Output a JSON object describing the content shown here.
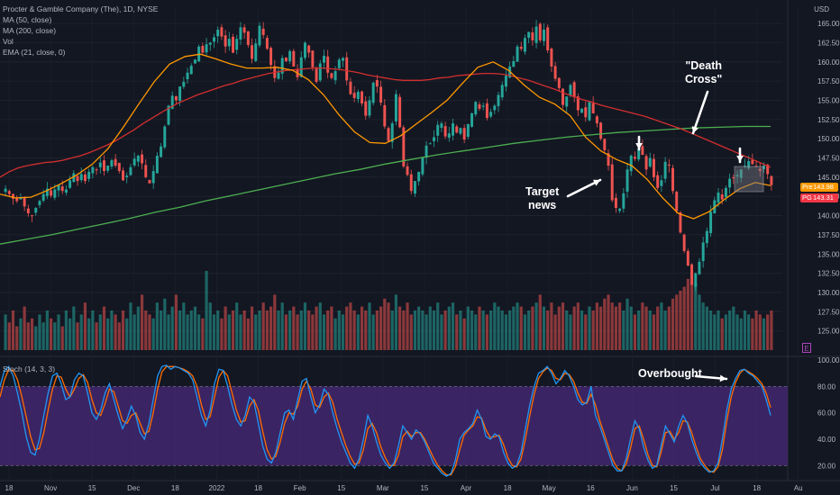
{
  "header": {
    "symbol_line": "Procter & Gamble Company (The), 1D, NYSE",
    "indicators": [
      "MA (50, close)",
      "MA (200, close)",
      "Vol",
      "EMA (21, close, 0)"
    ],
    "stoch_label": "Stoch (14, 3, 3)",
    "currency": "USD"
  },
  "price_tags": [
    {
      "key": "Pre",
      "value": "143.98",
      "color": "#ff9800"
    },
    {
      "key": "PG",
      "value": "143.31",
      "color": "#f23645"
    }
  ],
  "annotations": {
    "death_cross": "\"Death\nCross\"",
    "target_news": "Target\nnews",
    "overbought": "Overbought"
  },
  "colors": {
    "bg": "#131722",
    "up": "#26a69a",
    "down": "#ef5350",
    "ma50": "#d32f2f",
    "ma200": "#4caf50",
    "ema21": "#ff9800",
    "stoch_k": "#2196f3",
    "stoch_d": "#ff6d00",
    "stoch_band": "#4a2a7a"
  },
  "chart_data": [
    {
      "type": "candlestick",
      "title": "Procter & Gamble Company (The), 1D, NYSE",
      "ylabel": "USD",
      "ylim": [
        122.5,
        167.0
      ],
      "y_ticks": [
        125.0,
        127.5,
        130.0,
        132.5,
        135.0,
        137.5,
        140.0,
        142.5,
        145.0,
        147.5,
        150.0,
        152.5,
        155.0,
        157.5,
        160.0,
        162.5,
        165.0
      ],
      "x_tick_labels": [
        "18",
        "Nov",
        "15",
        "Dec",
        "18",
        "2022",
        "18",
        "Feb",
        "15",
        "Mar",
        "15",
        "Apr",
        "18",
        "May",
        "16",
        "Jun",
        "15",
        "Jul",
        "18",
        "Au"
      ],
      "close_series": [
        143.5,
        142.8,
        142.2,
        141.9,
        142.3,
        141.2,
        140.3,
        140.0,
        141.0,
        141.9,
        142.8,
        143.5,
        142.6,
        143.4,
        144.0,
        143.2,
        143.4,
        144.6,
        145.5,
        144.5,
        145.4,
        144.5,
        145.7,
        146.3,
        146.0,
        146.9,
        145.8,
        146.5,
        147.2,
        146.5,
        145.8,
        144.6,
        145.2,
        146.3,
        147.4,
        147.8,
        146.8,
        145.0,
        144.2,
        145.8,
        147.8,
        149.0,
        151.6,
        154.3,
        155.6,
        155.0,
        156.8,
        157.4,
        158.6,
        159.5,
        160.3,
        162.0,
        161.2,
        162.3,
        162.5,
        163.2,
        164.2,
        163.3,
        162.0,
        163.0,
        161.2,
        163.0,
        164.5,
        163.8,
        162.2,
        160.4,
        162.4,
        164.7,
        163.5,
        161.7,
        159.6,
        157.9,
        158.6,
        160.5,
        160.1,
        161.4,
        159.4,
        158.0,
        160.6,
        162.5,
        161.2,
        159.3,
        157.4,
        159.8,
        160.8,
        158.6,
        157.9,
        158.8,
        160.3,
        160.5,
        157.6,
        155.8,
        155.3,
        156.1,
        154.6,
        153.0,
        155.0,
        157.3,
        156.8,
        154.7,
        151.6,
        149.7,
        152.0,
        155.8,
        151.5,
        146.4,
        145.3,
        143.2,
        144.5,
        145.7,
        147.6,
        149.1,
        149.4,
        150.2,
        151.8,
        152.0,
        150.3,
        150.7,
        152.0,
        150.8,
        151.4,
        149.9,
        151.9,
        153.3,
        154.8,
        153.9,
        154.3,
        152.7,
        153.5,
        154.3,
        155.7,
        157.0,
        158.2,
        159.4,
        160.1,
        162.0,
        161.7,
        163.1,
        163.9,
        162.8,
        164.6,
        162.8,
        164.2,
        161.5,
        159.4,
        157.8,
        156.6,
        154.4,
        155.5,
        157.0,
        155.4,
        153.7,
        153.9,
        152.8,
        154.8,
        153.3,
        152.0,
        150.0,
        148.5,
        146.5,
        142.0,
        141.0,
        140.9,
        142.9,
        146.0,
        147.8,
        147.4,
        148.7,
        147.9,
        146.0,
        147.5,
        145.0,
        143.6,
        144.6,
        147.0,
        146.5,
        143.2,
        140.6,
        137.8,
        135.4,
        133.5,
        131.0,
        132.5,
        134.0,
        136.5,
        138.0,
        140.5,
        142.0,
        143.0,
        142.1,
        143.6,
        144.8,
        144.9,
        145.3,
        146.0,
        146.5,
        147.1,
        146.7,
        146.4,
        145.8,
        146.5,
        145.4,
        143.98
      ],
      "ma50_series": [
        145.0,
        145.7,
        146.2,
        146.5,
        146.7,
        146.9,
        147.0,
        147.2,
        147.5,
        147.8,
        148.2,
        148.7,
        149.2,
        149.8,
        150.5,
        151.2,
        152.0,
        152.7,
        153.4,
        154.1,
        154.7,
        155.2,
        155.7,
        156.1,
        156.5,
        156.9,
        157.2,
        157.6,
        157.9,
        158.2,
        158.5,
        158.7,
        158.9,
        159.0,
        159.1,
        159.2,
        159.2,
        159.1,
        159.0,
        158.8,
        158.6,
        158.3,
        158.1,
        157.9,
        157.7,
        157.6,
        157.6,
        157.6,
        157.7,
        157.9,
        158.0,
        158.2,
        158.3,
        158.4,
        158.5,
        158.5,
        158.4,
        158.2,
        157.9,
        157.6,
        157.2,
        156.8,
        156.4,
        155.9,
        155.5,
        155.1,
        154.8,
        154.4,
        154.1,
        153.8,
        153.5,
        153.2,
        152.9,
        152.5,
        152.1,
        151.7,
        151.3,
        150.8,
        150.3,
        149.8,
        149.3,
        148.8,
        148.3,
        147.8,
        147.3,
        146.8,
        146.3
      ],
      "ma200_series": [
        136.3,
        136.9,
        137.5,
        138.2,
        138.9,
        139.6,
        140.4,
        141.1,
        141.9,
        142.6,
        143.3,
        144.0,
        144.7,
        145.4,
        146.0,
        146.7,
        147.3,
        147.9,
        148.4,
        148.9,
        149.4,
        149.8,
        150.2,
        150.5,
        150.8,
        151.0,
        151.2,
        151.4,
        151.5,
        151.6,
        151.6
      ],
      "ema21_series": [
        142.8,
        142.3,
        142.4,
        143.2,
        144.2,
        145.3,
        146.7,
        148.7,
        151.5,
        154.5,
        157.4,
        159.7,
        160.7,
        161.0,
        160.4,
        159.7,
        159.2,
        159.2,
        159.3,
        158.9,
        157.7,
        155.7,
        153.1,
        150.9,
        149.5,
        149.4,
        150.4,
        151.9,
        153.4,
        155.0,
        157.2,
        159.3,
        160.0,
        158.9,
        157.0,
        155.4,
        154.5,
        153.0,
        150.2,
        148.4,
        147.3,
        146.5,
        144.7,
        142.3,
        140.3,
        139.6,
        140.5,
        142.1,
        143.5,
        144.3,
        143.9
      ],
      "volume_series": [
        0.45,
        0.35,
        0.5,
        0.3,
        0.4,
        0.55,
        0.35,
        0.4,
        0.3,
        0.45,
        0.35,
        0.5,
        0.4,
        0.35,
        0.45,
        0.3,
        0.5,
        0.4,
        0.55,
        0.35,
        0.45,
        0.6,
        0.4,
        0.5,
        0.35,
        0.45,
        0.55,
        0.4,
        0.5,
        0.45,
        0.35,
        0.5,
        0.4,
        0.6,
        0.45,
        0.55,
        0.7,
        0.5,
        0.45,
        0.4,
        0.6,
        0.5,
        0.65,
        0.45,
        0.55,
        0.7,
        0.5,
        0.6,
        0.45,
        0.5,
        0.55,
        0.45,
        0.4,
        1.0,
        0.6,
        0.45,
        0.5,
        0.4,
        0.55,
        0.45,
        0.5,
        0.6,
        0.45,
        0.5,
        0.4,
        0.55,
        0.45,
        0.5,
        0.6,
        0.5,
        0.55,
        0.7,
        0.5,
        0.6,
        0.45,
        0.5,
        0.55,
        0.45,
        0.5,
        0.6,
        0.5,
        0.45,
        0.55,
        0.6,
        0.45,
        0.5,
        0.55,
        0.4,
        0.5,
        0.45,
        0.55,
        0.6,
        0.5,
        0.45,
        0.55,
        0.5,
        0.6,
        0.45,
        0.5,
        0.55,
        0.65,
        0.6,
        0.5,
        0.7,
        0.55,
        0.5,
        0.6,
        0.45,
        0.5,
        0.55,
        0.5,
        0.45,
        0.55,
        0.5,
        0.6,
        0.45,
        0.5,
        0.55,
        0.6,
        0.45,
        0.5,
        0.4,
        0.55,
        0.5,
        0.45,
        0.55,
        0.5,
        0.45,
        0.5,
        0.6,
        0.55,
        0.5,
        0.45,
        0.5,
        0.55,
        0.6,
        0.55,
        0.45,
        0.5,
        0.55,
        0.6,
        0.7,
        0.55,
        0.5,
        0.6,
        0.45,
        0.55,
        0.6,
        0.5,
        0.45,
        0.55,
        0.6,
        0.5,
        0.45,
        0.55,
        0.5,
        0.6,
        0.55,
        0.65,
        0.7,
        0.6,
        0.55,
        0.6,
        0.5,
        0.65,
        0.55,
        0.45,
        0.5,
        0.6,
        0.55,
        0.5,
        0.45,
        0.55,
        0.6,
        0.5,
        0.55,
        0.65,
        0.7,
        0.75,
        0.8,
        0.9,
        1.0,
        0.85,
        0.7,
        0.6,
        0.55,
        0.5,
        0.45,
        0.5,
        0.4,
        0.45,
        0.5,
        0.55,
        0.45,
        0.4,
        0.5,
        0.45,
        0.4,
        0.5,
        0.45,
        0.4,
        0.45,
        0.5
      ]
    },
    {
      "type": "line",
      "title": "Stoch (14, 3, 3)",
      "ylim": [
        10,
        100
      ],
      "y_ticks": [
        20.0,
        40.0,
        60.0,
        80.0,
        100.0
      ],
      "band": [
        20,
        80
      ],
      "series": [
        {
          "name": "%K",
          "values": [
            80,
            92,
            95,
            88,
            75,
            60,
            42,
            30,
            28,
            40,
            58,
            75,
            88,
            90,
            82,
            70,
            72,
            85,
            90,
            88,
            75,
            60,
            55,
            62,
            75,
            82,
            70,
            58,
            48,
            55,
            65,
            58,
            45,
            40,
            52,
            70,
            88,
            95,
            96,
            93,
            95,
            94,
            92,
            90,
            85,
            72,
            58,
            50,
            62,
            82,
            93,
            92,
            80,
            66,
            55,
            50,
            58,
            72,
            68,
            52,
            35,
            25,
            22,
            30,
            45,
            60,
            62,
            55,
            70,
            84,
            86,
            72,
            60,
            66,
            78,
            74,
            60,
            48,
            38,
            30,
            22,
            18,
            25,
            40,
            58,
            50,
            38,
            28,
            22,
            18,
            22,
            35,
            50,
            45,
            40,
            47,
            44,
            38,
            30,
            22,
            18,
            14,
            12,
            14,
            24,
            40,
            45,
            48,
            52,
            62,
            55,
            42,
            40,
            44,
            42,
            30,
            22,
            18,
            20,
            30,
            48,
            66,
            80,
            90,
            92,
            95,
            90,
            82,
            86,
            92,
            88,
            80,
            70,
            66,
            68,
            80,
            58,
            50,
            40,
            30,
            20,
            16,
            16,
            25,
            40,
            54,
            48,
            34,
            24,
            18,
            20,
            35,
            50,
            44,
            38,
            50,
            58,
            52,
            40,
            30,
            22,
            18,
            15,
            16,
            22,
            40,
            62,
            78,
            86,
            92,
            93,
            90,
            88,
            84,
            80,
            70,
            58
          ]
        },
        {
          "name": "%D",
          "values": [
            72,
            85,
            93,
            92,
            85,
            72,
            57,
            42,
            32,
            33,
            45,
            62,
            78,
            88,
            87,
            78,
            72,
            78,
            86,
            89,
            83,
            70,
            60,
            58,
            67,
            78,
            76,
            65,
            54,
            52,
            58,
            60,
            52,
            44,
            46,
            60,
            78,
            91,
            95,
            95,
            95,
            94,
            93,
            91,
            88,
            80,
            66,
            55,
            57,
            72,
            87,
            92,
            88,
            75,
            62,
            53,
            54,
            65,
            70,
            62,
            46,
            32,
            25,
            27,
            38,
            52,
            60,
            59,
            65,
            78,
            84,
            78,
            66,
            64,
            72,
            75,
            68,
            55,
            45,
            35,
            27,
            21,
            22,
            32,
            48,
            52,
            45,
            34,
            26,
            20,
            20,
            28,
            42,
            46,
            42,
            45,
            45,
            40,
            33,
            26,
            20,
            16,
            13,
            13,
            19,
            32,
            43,
            47,
            50,
            57,
            56,
            47,
            41,
            42,
            43,
            36,
            26,
            20,
            19,
            25,
            40,
            58,
            74,
            86,
            91,
            94,
            92,
            86,
            85,
            90,
            89,
            84,
            75,
            68,
            67,
            74,
            66,
            54,
            44,
            34,
            24,
            18,
            16,
            21,
            33,
            48,
            50,
            40,
            28,
            20,
            19,
            30,
            45,
            46,
            40,
            45,
            54,
            53,
            45,
            34,
            25,
            20,
            16,
            15,
            19,
            32,
            54,
            72,
            83,
            90,
            93,
            91,
            89,
            86,
            82,
            75,
            64
          ]
        }
      ]
    }
  ]
}
